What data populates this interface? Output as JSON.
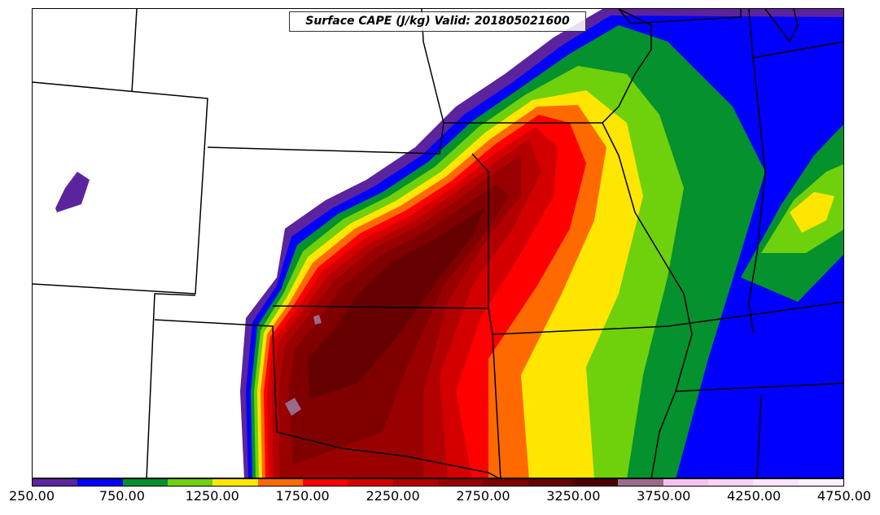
{
  "title": "Surface CAPE (J/kg) Valid: 201805021600",
  "colorbar": {
    "levels": [
      250,
      500,
      750,
      1000,
      1250,
      1500,
      1750,
      2000,
      2250,
      2500,
      2750,
      3000,
      3250,
      3500,
      3750,
      4000,
      4250,
      4500,
      4750
    ],
    "colors": [
      "#5b249e",
      "#0000ff",
      "#05912d",
      "#6fd00c",
      "#ffe600",
      "#ff6a00",
      "#ff0000",
      "#d40000",
      "#b30000",
      "#990000",
      "#800000",
      "#660000",
      "#4d0000",
      "#9a6a8a",
      "#f5c2f0",
      "#f8d3f6",
      "#fbe4fa",
      "#fdf0fd"
    ],
    "tick_labels": [
      "250.00",
      "750.00",
      "1250.00",
      "1750.00",
      "2250.00",
      "2750.00",
      "3250.00",
      "3750.00",
      "4250.00",
      "4750.00"
    ]
  }
}
